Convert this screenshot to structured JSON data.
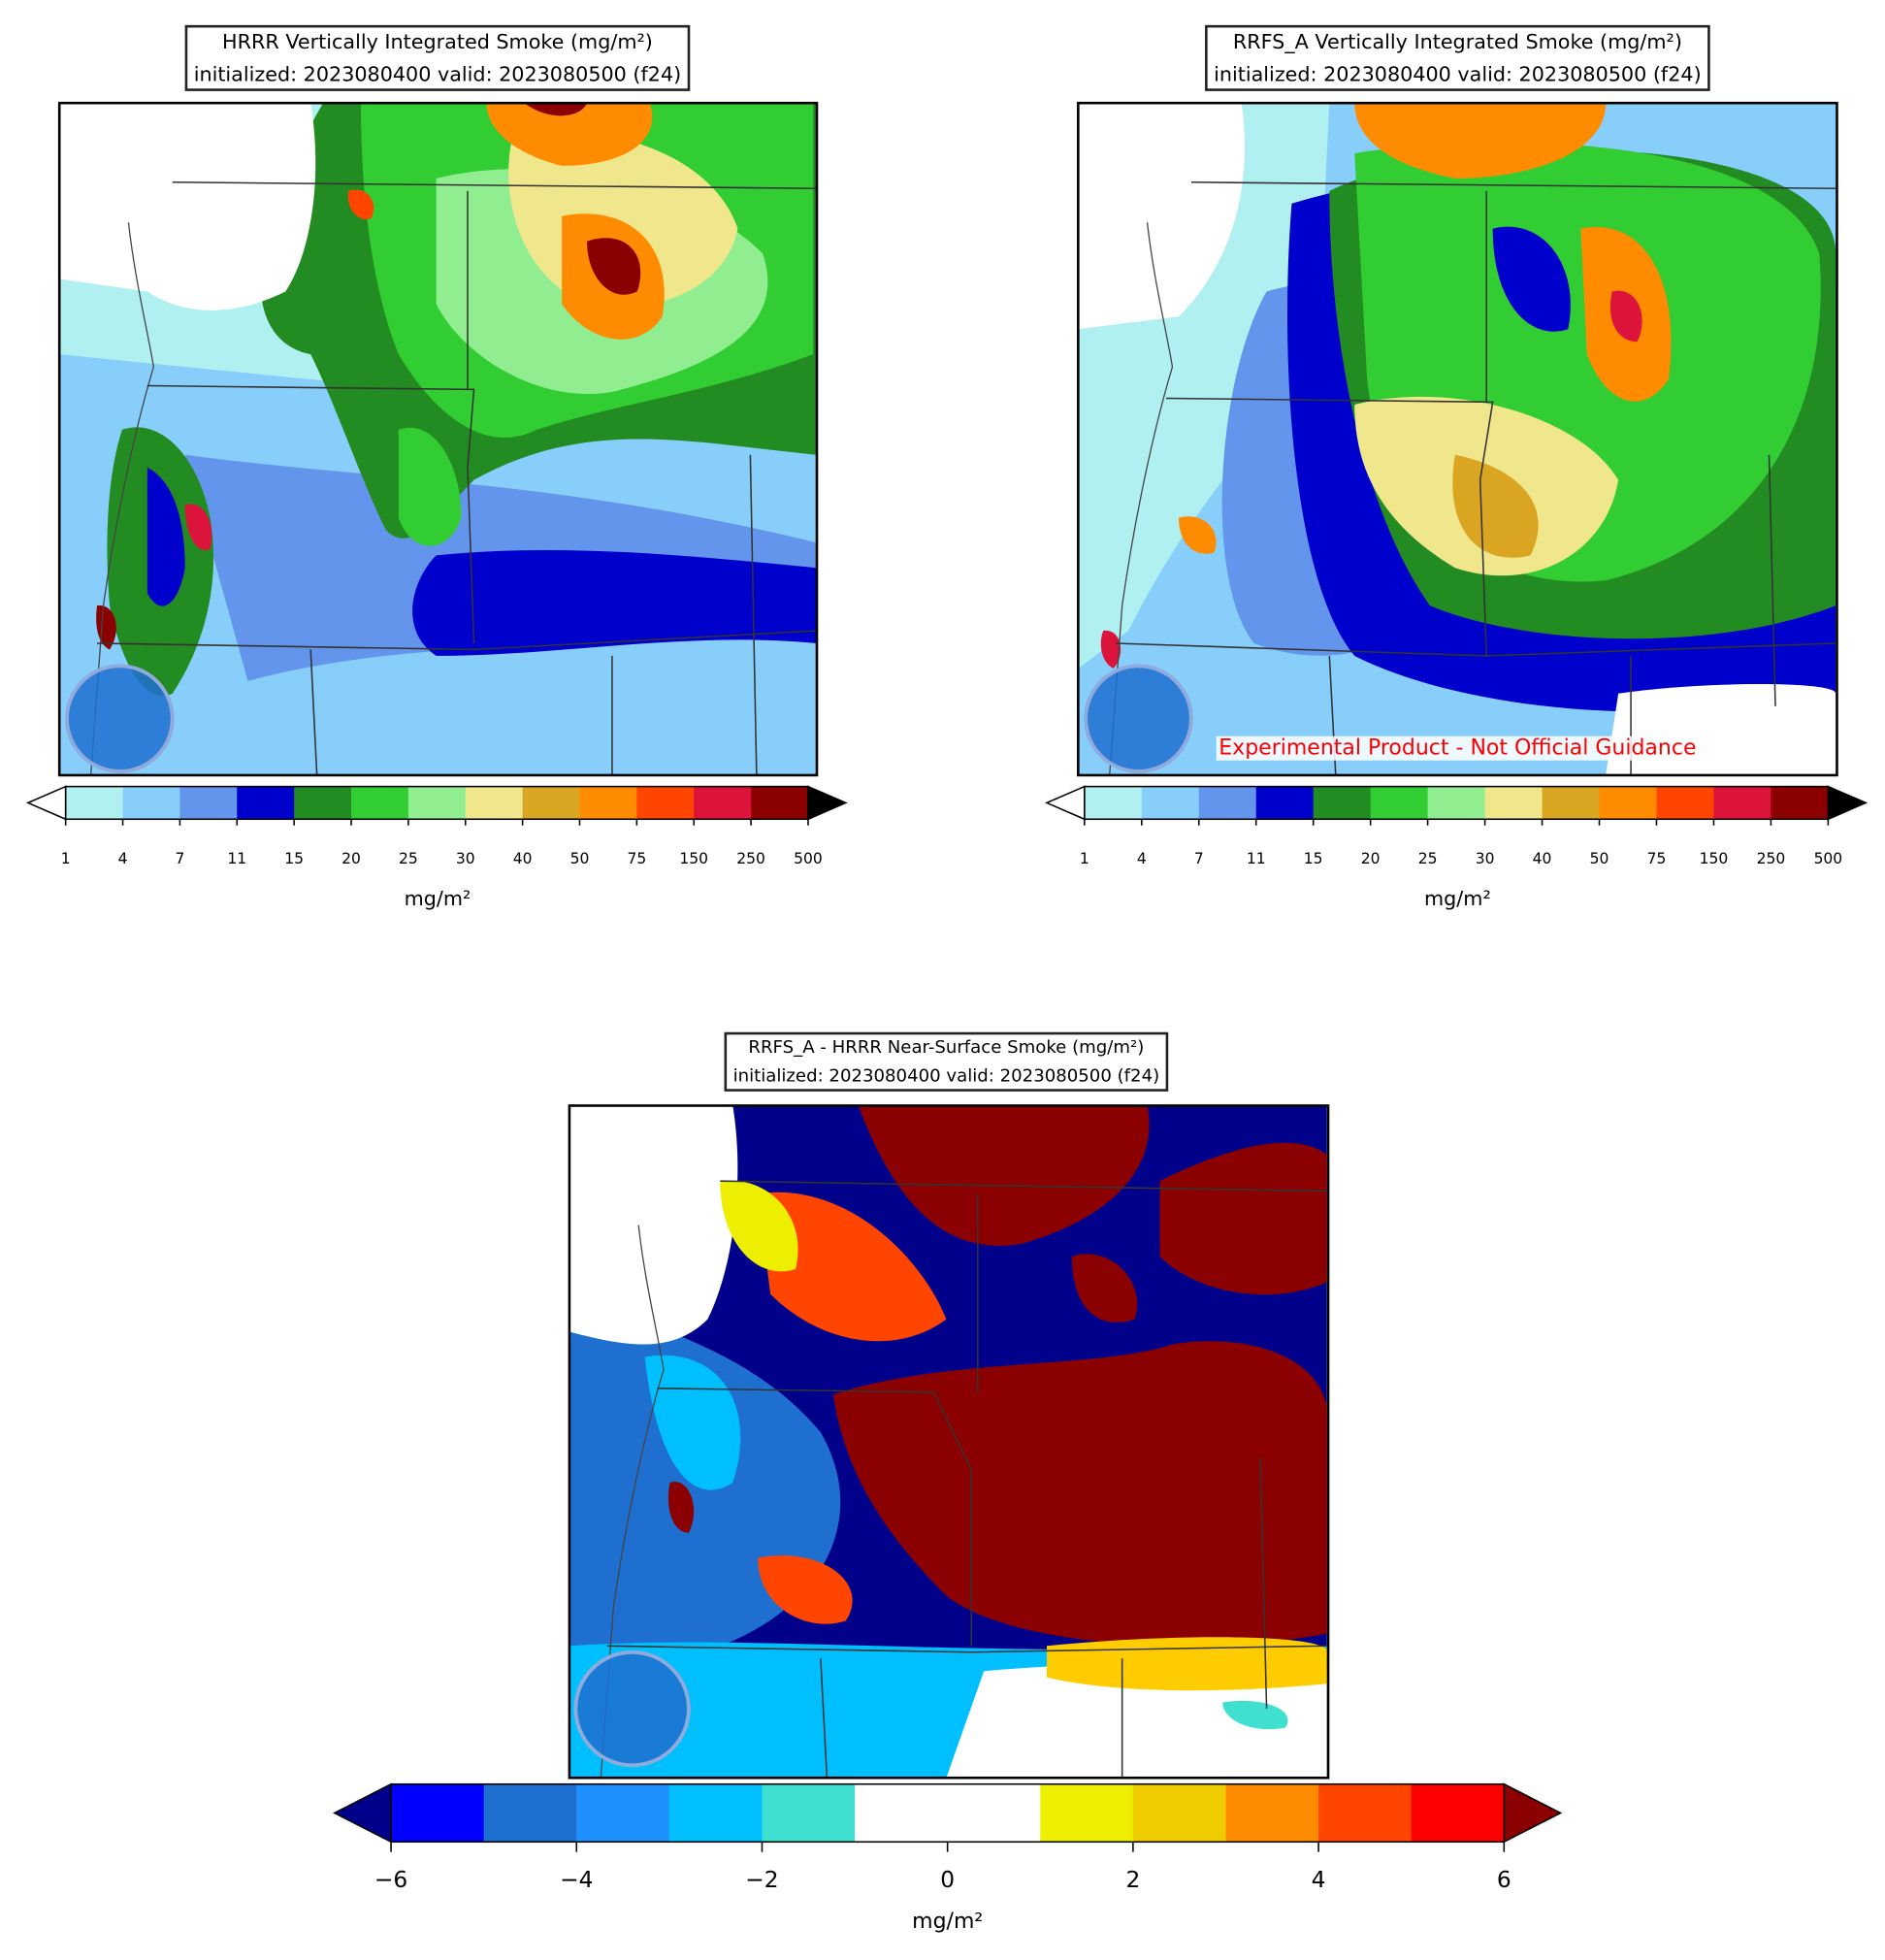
{
  "panels": [
    {
      "title": "HRRR Vertically Integrated Smoke (mg/m²)",
      "subtitle": "initialized: 2023080400 valid: 2023080500 (f24)",
      "colorbar": {
        "ticks": [
          1,
          4,
          7,
          11,
          15,
          20,
          25,
          30,
          40,
          50,
          75,
          150,
          250,
          500
        ],
        "colors": [
          "#b0f0f0",
          "#87cefa",
          "#6495ed",
          "#0000cd",
          "#228b22",
          "#32cd32",
          "#90ee90",
          "#f0e68c",
          "#daa520",
          "#ff8c00",
          "#ff4500",
          "#dc143c",
          "#8b0000"
        ],
        "under_color": "#ffffff",
        "over_color": "#000000",
        "label": "mg/m²"
      }
    },
    {
      "title": "RRFS_A Vertically Integrated Smoke (mg/m²)",
      "subtitle": "initialized: 2023080400 valid: 2023080500 (f24)",
      "watermark": "Experimental Product - Not Official Guidance",
      "colorbar": {
        "ticks": [
          1,
          4,
          7,
          11,
          15,
          20,
          25,
          30,
          40,
          50,
          75,
          150,
          250,
          500
        ],
        "colors": [
          "#b0f0f0",
          "#87cefa",
          "#6495ed",
          "#0000cd",
          "#228b22",
          "#32cd32",
          "#90ee90",
          "#f0e68c",
          "#daa520",
          "#ff8c00",
          "#ff4500",
          "#dc143c",
          "#8b0000"
        ],
        "under_color": "#ffffff",
        "over_color": "#000000",
        "label": "mg/m²"
      }
    },
    {
      "title": "RRFS_A - HRRR Near-Surface Smoke (mg/m²)",
      "subtitle": "initialized: 2023080400 valid: 2023080500 (f24)",
      "colorbar": {
        "levels": [
          -6,
          -5,
          -4,
          -3,
          -2,
          -1,
          0,
          1,
          2,
          3,
          4,
          5,
          6
        ],
        "ticks": [
          {
            "value": -6,
            "label": "−6"
          },
          {
            "value": -4,
            "label": "−4"
          },
          {
            "value": -2,
            "label": "−2"
          },
          0,
          2,
          4,
          6
        ],
        "colors": [
          "#0000ff",
          "#1e6fd0",
          "#1e90ff",
          "#00bfff",
          "#40e0d0",
          "#ffffff",
          "#ffffff",
          "#eeee00",
          "#eecc00",
          "#ff8c00",
          "#ff4500",
          "#ff0000"
        ],
        "under_color": "#00008b",
        "over_color": "#8b0000",
        "label": "mg/m²"
      }
    }
  ]
}
